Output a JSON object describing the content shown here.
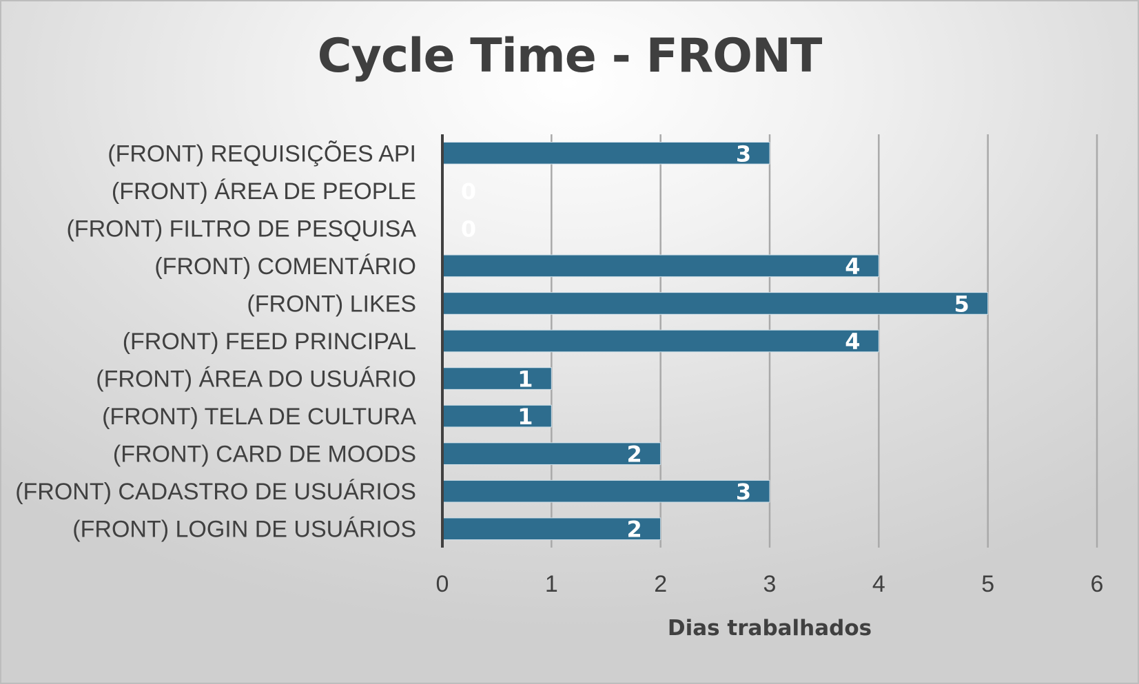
{
  "chart_data": {
    "type": "bar",
    "orientation": "horizontal",
    "title": "Cycle Time - FRONT",
    "xlabel": "Dias trabalhados",
    "ylabel": "",
    "categories": [
      "(FRONT) REQUISIÇÕES API",
      "(FRONT) ÁREA DE PEOPLE",
      "(FRONT) FILTRO DE PESQUISA",
      "(FRONT) COMENTÁRIO",
      "(FRONT) LIKES",
      "(FRONT) FEED PRINCIPAL",
      "(FRONT) ÁREA DO USUÁRIO",
      "(FRONT) TELA DE CULTURA",
      "(FRONT) CARD DE MOODS",
      "(FRONT) CADASTRO DE USUÁRIOS",
      "(FRONT) LOGIN DE USUÁRIOS"
    ],
    "values": [
      3,
      0,
      0,
      4,
      5,
      4,
      1,
      1,
      2,
      3,
      2
    ],
    "xlim": [
      0,
      6
    ],
    "xticks": [
      "0",
      "1",
      "2",
      "3",
      "4",
      "5",
      "6"
    ],
    "grid": "vertical",
    "legend": "none",
    "bar_color": "#2e6d8e",
    "data_labels": true
  }
}
